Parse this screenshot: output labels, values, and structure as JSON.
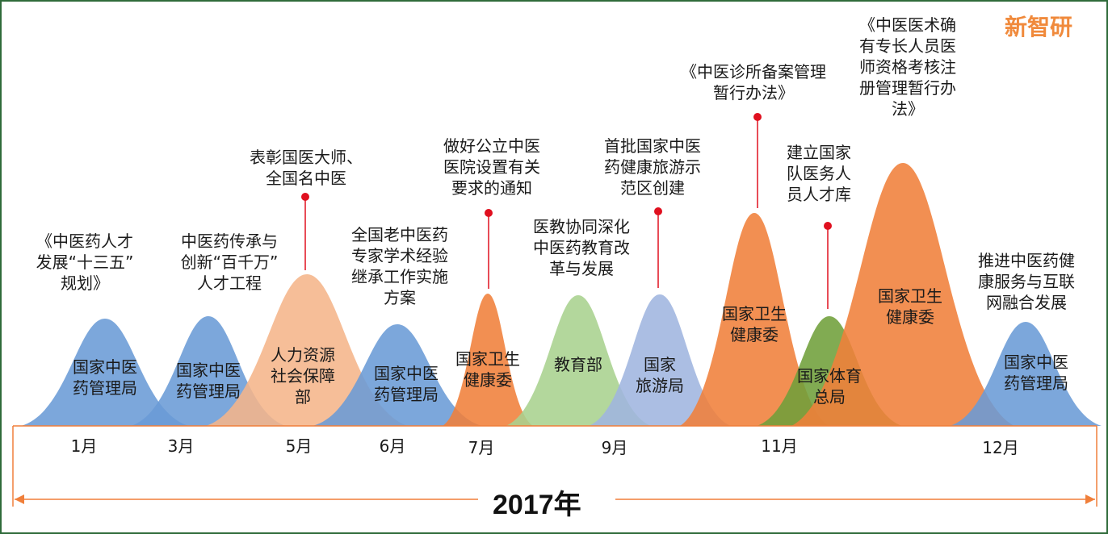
{
  "brand": "新智研",
  "year": "2017年",
  "colors": {
    "blue": "#6a9bd6",
    "peach": "#f5b58a",
    "orange": "#f07f3a",
    "light_green": "#a9d18e",
    "lavender": "#9fb5df",
    "olive": "#6f9f3a",
    "pin": "#e0101f",
    "axis": "#f07f3a"
  },
  "months": [
    "1月",
    "3月",
    "5月",
    "6月",
    "7月",
    "9月",
    "11月",
    "12月"
  ],
  "agencies": [
    {
      "label": "国家中医\n药管理局",
      "color": "blue"
    },
    {
      "label": "国家中医\n药管理局",
      "color": "blue"
    },
    {
      "label": "人力资源\n社会保障\n部",
      "color": "peach"
    },
    {
      "label": "国家中医\n药管理局",
      "color": "blue"
    },
    {
      "label": "国家卫生\n健康委",
      "color": "orange"
    },
    {
      "label": "教育部",
      "color": "light_green"
    },
    {
      "label": "国家\n旅游局",
      "color": "lavender"
    },
    {
      "label": "国家卫生\n健康委",
      "color": "orange"
    },
    {
      "label": "国家体育\n总局",
      "color": "olive"
    },
    {
      "label": "国家卫生\n健康委",
      "color": "orange"
    },
    {
      "label": "国家中医\n药管理局",
      "color": "blue"
    }
  ],
  "policies": [
    "《中医药人才\n发展“十三五”\n规划》",
    "中医药传承与\n创新“百千万”\n人才工程",
    "表彰国医大师、\n全国名中医",
    "全国老中医药\n专家学术经验\n继承工作实施\n方案",
    "做好公立中医\n医院设置有关\n要求的通知",
    "医教协同深化\n中医药教育改\n革与发展",
    "首批国家中医\n药健康旅游示\n范区创建",
    "《中医诊所备案管理\n暂行办法》",
    "建立国家\n队医务人\n员人才库",
    "《中医医术确\n有专长人员医\n师资格考核注\n册管理暂行办\n法》",
    "推进中医药健\n康服务与互联\n网融合发展"
  ]
}
